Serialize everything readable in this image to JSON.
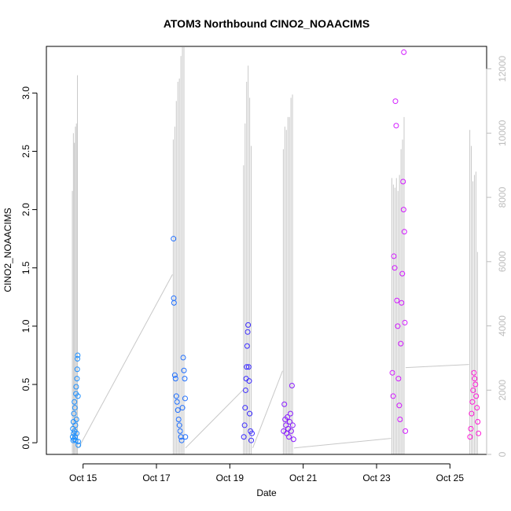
{
  "chart_data": {
    "type": "scatter",
    "title": "ATOM3 Northbound CINO2_NOAACIMS",
    "xlabel": "Date",
    "ylabel": "CINO2_NOAACIMS",
    "y2label": "",
    "xlim": [
      "2016-10-14T00:00",
      "2016-10-26T00:00"
    ],
    "ylim": [
      -0.1,
      3.4
    ],
    "y2lim": [
      0,
      12700
    ],
    "x_ticks": [
      {
        "date": "2016-10-15T00:00",
        "label": "Oct 15"
      },
      {
        "date": "2016-10-17T00:00",
        "label": "Oct 17"
      },
      {
        "date": "2016-10-19T00:00",
        "label": "Oct 19"
      },
      {
        "date": "2016-10-21T00:00",
        "label": "Oct 21"
      },
      {
        "date": "2016-10-23T00:00",
        "label": "Oct 23"
      },
      {
        "date": "2016-10-25T00:00",
        "label": "Oct 25"
      }
    ],
    "y_ticks": [
      0.0,
      0.5,
      1.0,
      1.5,
      2.0,
      2.5,
      3.0
    ],
    "y_tick_labels": [
      "0.0",
      "0.5",
      "1.0",
      "1.5",
      "2.0",
      "2.5",
      "3.0"
    ],
    "y2_ticks": [
      0,
      2000,
      4000,
      6000,
      8000,
      10000,
      12000
    ],
    "y2_tick_labels": [
      "0",
      "2000",
      "4000",
      "6000",
      "8000",
      "10000",
      "12000"
    ],
    "colors": {
      "altitude_line": "#c8c8c8",
      "flight_colors": [
        "#1e90ff",
        "#1f6fff",
        "#3b2bff",
        "#8a1dff",
        "#d21aff",
        "#ff1ad6"
      ]
    },
    "flights": [
      {
        "start": "2016-10-14T17:00",
        "end": "2016-10-14T21:00",
        "color_index": 0,
        "points": [
          [
            "2016-10-14T17:10",
            0.05
          ],
          [
            "2016-10-14T17:20",
            0.12
          ],
          [
            "2016-10-14T17:30",
            0.02
          ],
          [
            "2016-10-14T17:40",
            0.18
          ],
          [
            "2016-10-14T17:50",
            0.08
          ],
          [
            "2016-10-14T18:00",
            0.25
          ],
          [
            "2016-10-14T18:10",
            0.03
          ],
          [
            "2016-10-14T18:20",
            0.35
          ],
          [
            "2016-10-14T18:30",
            0.1
          ],
          [
            "2016-10-14T18:40",
            0.3
          ],
          [
            "2016-10-14T18:50",
            0.05
          ],
          [
            "2016-10-14T19:00",
            0.15
          ],
          [
            "2016-10-14T19:10",
            0.02
          ],
          [
            "2016-10-14T19:20",
            0.42
          ],
          [
            "2016-10-14T19:30",
            0.48
          ],
          [
            "2016-10-14T19:40",
            0.2
          ],
          [
            "2016-10-14T19:50",
            0.08
          ],
          [
            "2016-10-14T20:00",
            0.55
          ],
          [
            "2016-10-14T20:10",
            0.63
          ],
          [
            "2016-10-14T20:20",
            0.72
          ],
          [
            "2016-10-14T20:30",
            0.75
          ],
          [
            "2016-10-14T20:40",
            0.4
          ],
          [
            "2016-10-14T20:50",
            0.01
          ],
          [
            "2016-10-14T20:55",
            -0.02
          ]
        ]
      },
      {
        "start": "2016-10-17T11:00",
        "end": "2016-10-17T19:00",
        "color_index": 1,
        "points": [
          [
            "2016-10-17T11:10",
            1.75
          ],
          [
            "2016-10-17T11:20",
            1.24
          ],
          [
            "2016-10-17T11:30",
            1.2
          ],
          [
            "2016-10-17T12:00",
            0.58
          ],
          [
            "2016-10-17T12:30",
            0.55
          ],
          [
            "2016-10-17T13:00",
            0.4
          ],
          [
            "2016-10-17T13:30",
            0.35
          ],
          [
            "2016-10-17T14:00",
            0.28
          ],
          [
            "2016-10-17T14:30",
            0.2
          ],
          [
            "2016-10-17T15:00",
            0.15
          ],
          [
            "2016-10-17T15:30",
            0.1
          ],
          [
            "2016-10-17T16:00",
            0.05
          ],
          [
            "2016-10-17T16:30",
            0.02
          ],
          [
            "2016-10-17T17:00",
            0.3
          ],
          [
            "2016-10-17T17:30",
            0.73
          ],
          [
            "2016-10-17T18:00",
            0.62
          ],
          [
            "2016-10-17T18:30",
            0.55
          ],
          [
            "2016-10-17T18:45",
            0.38
          ],
          [
            "2016-10-17T18:55",
            0.05
          ]
        ]
      },
      {
        "start": "2016-10-19T09:00",
        "end": "2016-10-19T15:00",
        "color_index": 2,
        "points": [
          [
            "2016-10-19T09:10",
            0.05
          ],
          [
            "2016-10-19T09:40",
            0.15
          ],
          [
            "2016-10-19T10:00",
            0.3
          ],
          [
            "2016-10-19T10:20",
            0.45
          ],
          [
            "2016-10-19T10:40",
            0.55
          ],
          [
            "2016-10-19T11:00",
            0.65
          ],
          [
            "2016-10-19T11:20",
            0.83
          ],
          [
            "2016-10-19T11:40",
            0.95
          ],
          [
            "2016-10-19T12:00",
            1.01
          ],
          [
            "2016-10-19T12:20",
            0.65
          ],
          [
            "2016-10-19T12:40",
            0.53
          ],
          [
            "2016-10-19T13:00",
            0.25
          ],
          [
            "2016-10-19T13:30",
            0.1
          ],
          [
            "2016-10-19T14:00",
            0.02
          ],
          [
            "2016-10-19T14:30",
            0.08
          ]
        ]
      },
      {
        "start": "2016-10-20T11:00",
        "end": "2016-10-20T18:00",
        "color_index": 3,
        "points": [
          [
            "2016-10-20T11:10",
            0.1
          ],
          [
            "2016-10-20T11:40",
            0.33
          ],
          [
            "2016-10-20T12:10",
            0.2
          ],
          [
            "2016-10-20T12:40",
            0.15
          ],
          [
            "2016-10-20T13:10",
            0.08
          ],
          [
            "2016-10-20T13:40",
            0.22
          ],
          [
            "2016-10-20T14:10",
            0.12
          ],
          [
            "2016-10-20T14:40",
            0.05
          ],
          [
            "2016-10-20T15:10",
            0.18
          ],
          [
            "2016-10-20T15:40",
            0.25
          ],
          [
            "2016-10-20T16:10",
            0.1
          ],
          [
            "2016-10-20T16:40",
            0.49
          ],
          [
            "2016-10-20T17:10",
            0.15
          ],
          [
            "2016-10-20T17:40",
            0.03
          ]
        ]
      },
      {
        "start": "2016-10-23T10:00",
        "end": "2016-10-23T19:00",
        "color_index": 4,
        "points": [
          [
            "2016-10-23T10:20",
            0.6
          ],
          [
            "2016-10-23T10:50",
            0.4
          ],
          [
            "2016-10-23T11:20",
            1.6
          ],
          [
            "2016-10-23T11:50",
            1.5
          ],
          [
            "2016-10-23T12:20",
            2.93
          ],
          [
            "2016-10-23T12:50",
            2.72
          ],
          [
            "2016-10-23T13:20",
            1.22
          ],
          [
            "2016-10-23T13:50",
            1.0
          ],
          [
            "2016-10-23T14:20",
            0.55
          ],
          [
            "2016-10-23T14:50",
            0.32
          ],
          [
            "2016-10-23T15:20",
            0.2
          ],
          [
            "2016-10-23T15:50",
            0.85
          ],
          [
            "2016-10-23T16:20",
            1.2
          ],
          [
            "2016-10-23T16:50",
            1.45
          ],
          [
            "2016-10-23T17:20",
            2.24
          ],
          [
            "2016-10-23T17:40",
            2.0
          ],
          [
            "2016-10-23T17:50",
            3.35
          ],
          [
            "2016-10-23T18:10",
            1.81
          ],
          [
            "2016-10-23T18:30",
            1.03
          ],
          [
            "2016-10-23T18:50",
            0.1
          ]
        ]
      },
      {
        "start": "2016-10-25T13:00",
        "end": "2016-10-25T19:00",
        "color_index": 5,
        "points": [
          [
            "2016-10-25T13:10",
            0.05
          ],
          [
            "2016-10-25T13:40",
            0.12
          ],
          [
            "2016-10-25T14:10",
            0.25
          ],
          [
            "2016-10-25T14:40",
            0.35
          ],
          [
            "2016-10-25T15:10",
            0.45
          ],
          [
            "2016-10-25T15:40",
            0.6
          ],
          [
            "2016-10-25T16:10",
            0.55
          ],
          [
            "2016-10-25T16:40",
            0.5
          ],
          [
            "2016-10-25T17:10",
            0.4
          ],
          [
            "2016-10-25T17:40",
            0.3
          ],
          [
            "2016-10-25T18:10",
            0.18
          ],
          [
            "2016-10-25T18:40",
            0.08
          ]
        ]
      }
    ],
    "altitude": {
      "spikes": [
        [
          "2016-10-14T17:00",
          8200
        ],
        [
          "2016-10-14T17:40",
          10000
        ],
        [
          "2016-10-14T18:20",
          9700
        ],
        [
          "2016-10-14T19:00",
          10200
        ],
        [
          "2016-10-14T19:40",
          10300
        ],
        [
          "2016-10-14T20:20",
          11800
        ],
        [
          "2016-10-17T11:00",
          9800
        ],
        [
          "2016-10-17T12:00",
          10200
        ],
        [
          "2016-10-17T13:00",
          11000
        ],
        [
          "2016-10-17T14:00",
          11600
        ],
        [
          "2016-10-17T15:00",
          11700
        ],
        [
          "2016-10-17T16:00",
          12400
        ],
        [
          "2016-10-17T17:00",
          12800
        ],
        [
          "2016-10-17T18:00",
          13000
        ],
        [
          "2016-10-19T09:00",
          9000
        ],
        [
          "2016-10-19T10:00",
          10300
        ],
        [
          "2016-10-19T11:00",
          11600
        ],
        [
          "2016-10-19T12:00",
          12100
        ],
        [
          "2016-10-19T13:00",
          11100
        ],
        [
          "2016-10-19T14:00",
          9600
        ],
        [
          "2016-10-20T11:00",
          9500
        ],
        [
          "2016-10-20T12:00",
          10200
        ],
        [
          "2016-10-20T13:00",
          10100
        ],
        [
          "2016-10-20T14:00",
          10500
        ],
        [
          "2016-10-20T15:00",
          10500
        ],
        [
          "2016-10-20T16:00",
          11100
        ],
        [
          "2016-10-20T17:00",
          11200
        ],
        [
          "2016-10-23T10:00",
          8600
        ],
        [
          "2016-10-23T11:00",
          8400
        ],
        [
          "2016-10-23T12:00",
          8300
        ],
        [
          "2016-10-23T13:00",
          8600
        ],
        [
          "2016-10-23T14:00",
          8200
        ],
        [
          "2016-10-23T15:00",
          8700
        ],
        [
          "2016-10-23T16:00",
          9500
        ],
        [
          "2016-10-23T17:00",
          9800
        ],
        [
          "2016-10-23T18:00",
          10500
        ],
        [
          "2016-10-25T13:00",
          10100
        ],
        [
          "2016-10-25T14:00",
          9600
        ],
        [
          "2016-10-25T15:00",
          8500
        ],
        [
          "2016-10-25T16:00",
          8700
        ],
        [
          "2016-10-25T17:00",
          8800
        ],
        [
          "2016-10-25T18:00",
          6300
        ]
      ],
      "transits": [
        [
          "2016-10-14T21:00",
          200
        ],
        [
          "2016-10-17T10:30",
          5600
        ],
        [
          "2016-10-17T19:00",
          200
        ],
        [
          "2016-10-19T08:30",
          2000
        ],
        [
          "2016-10-19T15:00",
          200
        ],
        [
          "2016-10-20T10:30",
          2600
        ],
        [
          "2016-10-20T18:00",
          200
        ],
        [
          "2016-10-23T09:30",
          500
        ],
        [
          "2016-10-23T19:00",
          2700
        ],
        [
          "2016-10-25T12:30",
          2800
        ]
      ]
    }
  }
}
